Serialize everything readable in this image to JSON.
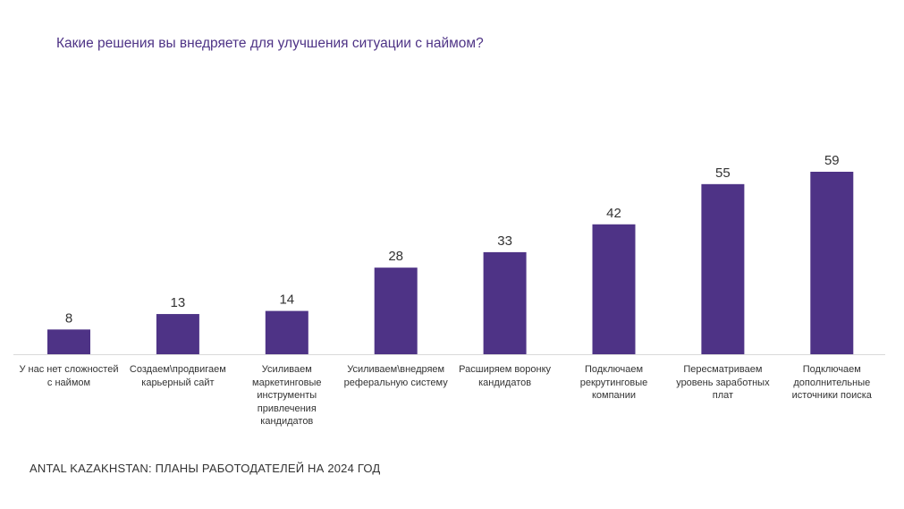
{
  "chart_data": {
    "type": "bar",
    "title": "Какие решения вы внедряете для улучшения ситуации с наймом?",
    "categories": [
      "У нас нет сложностей\nс наймом",
      "Создаем\\продвигаем\nкарьерный сайт",
      "Усиливаем\nмаркетинговые\nинструменты\nпривлечения\nкандидатов",
      "Усиливаем\\внедряем\nреферальную систему",
      "Расширяем воронку\nкандидатов",
      "Подключаем\nрекрутинговые\nкомпании",
      "Пересматриваем\nуровень заработных\nплат",
      "Подключаем\nдополнительные\nисточники поиска"
    ],
    "values": [
      8,
      13,
      14,
      28,
      33,
      42,
      55,
      59
    ],
    "xlabel": "",
    "ylabel": "",
    "ylim": [
      0,
      65
    ],
    "grid": false,
    "bar_color": "#4E3386"
  },
  "footer": "ANTAL KAZAKHSTAN: ПЛАНЫ РАБОТОДАТЕЛЕЙ НА 2024 ГОД"
}
